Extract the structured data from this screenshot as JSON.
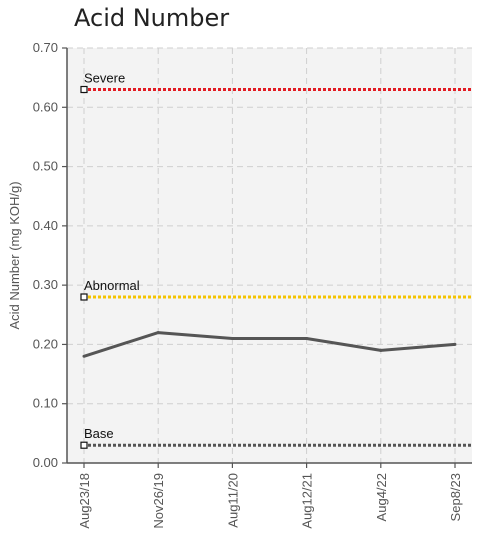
{
  "chart_data": {
    "type": "line",
    "title": "Acid Number",
    "ylabel": "Acid Number (mg KOH/g)",
    "xlabel": "",
    "ylim": [
      0,
      0.7
    ],
    "yticks": [
      "0.00",
      "0.10",
      "0.20",
      "0.30",
      "0.40",
      "0.50",
      "0.60",
      "0.70"
    ],
    "categories": [
      "Aug23/18",
      "Nov26/19",
      "Aug11/20",
      "Aug12/21",
      "Aug4/22",
      "Sep8/23"
    ],
    "series": [
      {
        "values": [
          0.18,
          0.22,
          0.21,
          0.21,
          0.19,
          0.2
        ],
        "color": "#555555"
      }
    ],
    "reference_lines": [
      {
        "label": "Severe",
        "value": 0.63,
        "color": "#e31b23"
      },
      {
        "label": "Abnormal",
        "value": 0.28,
        "color": "#f5c400"
      },
      {
        "label": "Base",
        "value": 0.03,
        "color": "#555555"
      }
    ],
    "grid": true,
    "plot_background": "#f3f3f3"
  }
}
